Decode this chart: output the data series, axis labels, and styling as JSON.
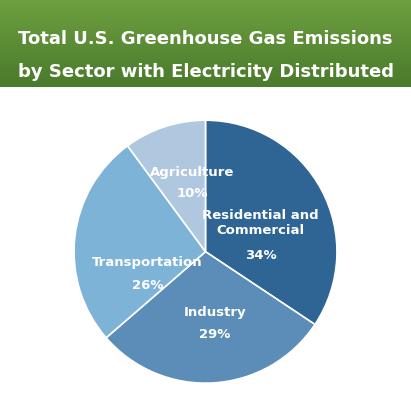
{
  "title_line1": "Total U.S. Greenhouse Gas Emissions",
  "title_line2": "by Sector with Electricity Distributed",
  "labels": [
    "Residential and\nCommercial",
    "Industry",
    "Transportation",
    "Agriculture"
  ],
  "values": [
    34,
    29,
    26,
    10
  ],
  "pct_labels": [
    "34%",
    "29%",
    "26%",
    "10%"
  ],
  "colors": [
    "#2E6594",
    "#5B8DB8",
    "#7EB3D8",
    "#B0C8DF"
  ],
  "title_bg_top": "#6EA040",
  "title_bg_bottom": "#4A7A2C",
  "title_text_color": "#FFFFFF",
  "background_color": "#FFFFFF",
  "startangle": 90,
  "wedge_edge_color": "#FFFFFF",
  "wedge_linewidth": 1.2,
  "title_font_size": 13.0,
  "label_font_size": 9.5
}
